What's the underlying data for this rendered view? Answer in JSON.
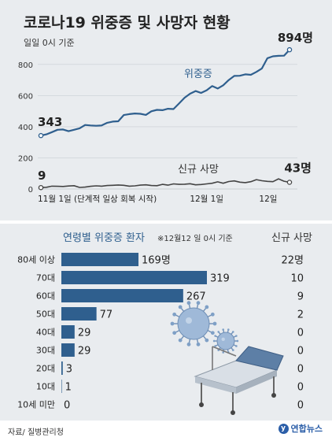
{
  "title": "코로나19 위중증 및 사망자 현황",
  "subtitle": "일일 0시 기준",
  "source": "자료/ 질병관리청",
  "logo_text": "연합뉴스",
  "colors": {
    "severe": "#2f5f8e",
    "deaths": "#444444",
    "bars": "#2f5f8e",
    "panel": "#e9ecef",
    "grid": "#c9ced3"
  },
  "chart_data": [
    {
      "type": "line",
      "title": "코로나19 위중증 및 사망자 현황",
      "x_labels": [
        "11월 1일 (단계적 일상 회복 시작)",
        "12월 1일",
        "12일"
      ],
      "y_ticks": [
        0,
        200,
        400,
        600,
        800
      ],
      "ylim": [
        0,
        900
      ],
      "grid": true,
      "series": [
        {
          "name": "위중증",
          "start_label": "343",
          "end_label": "894명",
          "values": [
            343,
            351,
            365,
            380,
            382,
            371,
            380,
            390,
            411,
            408,
            406,
            408,
            425,
            433,
            435,
            475,
            481,
            485,
            483,
            476,
            499,
            508,
            506,
            515,
            513,
            549,
            586,
            612,
            629,
            617,
            634,
            661,
            645,
            666,
            700,
            726,
            727,
            736,
            733,
            752,
            774,
            840,
            852,
            855,
            856,
            894
          ]
        },
        {
          "name": "신규 사망",
          "start_label": "9",
          "end_label": "43명",
          "values": [
            9,
            11,
            18,
            17,
            16,
            19,
            21,
            10,
            12,
            17,
            20,
            18,
            22,
            24,
            26,
            24,
            18,
            20,
            25,
            27,
            22,
            21,
            30,
            25,
            33,
            30,
            31,
            34,
            27,
            29,
            33,
            37,
            46,
            37,
            48,
            52,
            44,
            41,
            47,
            60,
            53,
            49,
            47,
            65,
            50,
            43
          ]
        }
      ]
    },
    {
      "type": "bar",
      "title": "연령별 위중증 환자",
      "note": "※12월12 일 0시 기준",
      "side_header": "신규 사망",
      "categories": [
        "80세 이상",
        "70대",
        "60대",
        "50대",
        "40대",
        "30대",
        "20대",
        "10대",
        "10세 미만"
      ],
      "values": [
        169,
        319,
        267,
        77,
        29,
        29,
        3,
        1,
        0
      ],
      "value_labels": [
        "169명",
        "319",
        "267",
        "77",
        "29",
        "29",
        "3",
        "1",
        "0"
      ],
      "deaths": [
        "22명",
        "10",
        "9",
        "2",
        "0",
        "0",
        "0",
        "0",
        "0"
      ]
    }
  ]
}
